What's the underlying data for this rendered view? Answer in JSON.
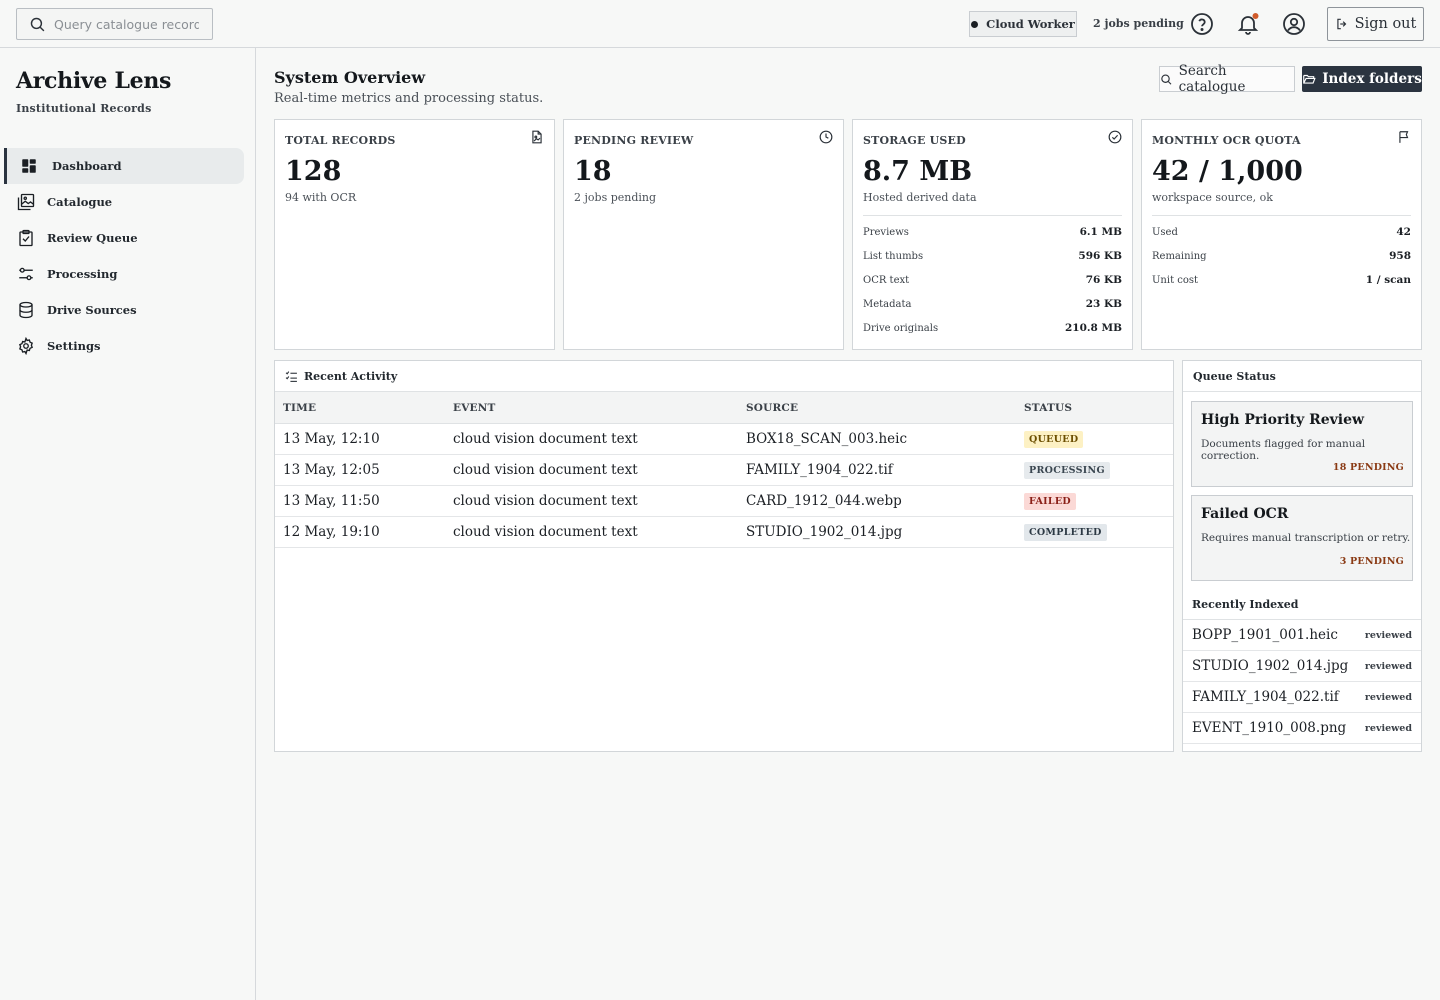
{
  "topbar": {
    "search_placeholder": "Query catalogue records, ID",
    "worker_label": "Cloud Worker",
    "jobs_label": "2 jobs pending",
    "signout_label": "Sign out"
  },
  "sidebar": {
    "brand": "Archive Lens",
    "brand_sub": "Institutional Records",
    "items": [
      {
        "label": "Dashboard",
        "icon": "dashboard-icon",
        "active": true
      },
      {
        "label": "Catalogue",
        "icon": "gallery-icon"
      },
      {
        "label": "Review Queue",
        "icon": "clipboard-check-icon"
      },
      {
        "label": "Processing",
        "icon": "sliders-icon"
      },
      {
        "label": "Drive Sources",
        "icon": "database-icon"
      },
      {
        "label": "Settings",
        "icon": "gear-icon"
      }
    ]
  },
  "main": {
    "title": "System Overview",
    "subtitle": "Real-time metrics and processing status.",
    "search_button": "Search catalogue",
    "index_button": "Index folders"
  },
  "cards": [
    {
      "label": "TOTAL RECORDS",
      "value": "128",
      "sub": "94 with OCR",
      "icon": "file-image-icon"
    },
    {
      "label": "PENDING REVIEW",
      "value": "18",
      "sub": "2 jobs pending",
      "icon": "clock-icon"
    },
    {
      "label": "STORAGE USED",
      "value": "8.7 MB",
      "sub": "Hosted derived data",
      "icon": "check-circle-icon",
      "rows": [
        {
          "k": "Previews",
          "v": "6.1 MB"
        },
        {
          "k": "List thumbs",
          "v": "596 KB"
        },
        {
          "k": "OCR text",
          "v": "76 KB"
        },
        {
          "k": "Metadata",
          "v": "23 KB"
        },
        {
          "k": "Drive originals",
          "v": "210.8 MB"
        }
      ]
    },
    {
      "label": "MONTHLY OCR QUOTA",
      "value": "42 / 1,000",
      "sub": "workspace source, ok",
      "icon": "flag-icon",
      "rows": [
        {
          "k": "Used",
          "v": "42"
        },
        {
          "k": "Remaining",
          "v": "958"
        },
        {
          "k": "Unit cost",
          "v": "1 / scan"
        }
      ]
    }
  ],
  "activity": {
    "title": "Recent Activity",
    "columns": [
      "TIME",
      "EVENT",
      "SOURCE",
      "STATUS"
    ],
    "rows": [
      {
        "time": "13 May, 12:10",
        "event": "cloud vision document text",
        "source": "BOX18_SCAN_003.heic",
        "status": "QUEUED"
      },
      {
        "time": "13 May, 12:05",
        "event": "cloud vision document text",
        "source": "FAMILY_1904_022.tif",
        "status": "PROCESSING"
      },
      {
        "time": "13 May, 11:50",
        "event": "cloud vision document text",
        "source": "CARD_1912_044.webp",
        "status": "FAILED"
      },
      {
        "time": "12 May, 19:10",
        "event": "cloud vision document text",
        "source": "STUDIO_1902_014.jpg",
        "status": "COMPLETED"
      }
    ]
  },
  "queue": {
    "title": "Queue Status",
    "cards": [
      {
        "title": "High Priority Review",
        "desc": "Documents flagged for manual correction.",
        "pending": "18 PENDING"
      },
      {
        "title": "Failed OCR",
        "desc": "Requires manual transcription or retry.",
        "pending": "3 PENDING"
      }
    ],
    "recent_title": "Recently Indexed",
    "recent": [
      {
        "name": "BOPP_1901_001.heic",
        "status": "reviewed"
      },
      {
        "name": "STUDIO_1902_014.jpg",
        "status": "reviewed"
      },
      {
        "name": "FAMILY_1904_022.tif",
        "status": "reviewed"
      },
      {
        "name": "EVENT_1910_008.png",
        "status": "reviewed"
      }
    ]
  },
  "colors": {
    "accent_dark": "#2b3440",
    "queued": "#fdf1c4",
    "failed": "#fbd9d6",
    "pending_text": "#8a3a14"
  }
}
